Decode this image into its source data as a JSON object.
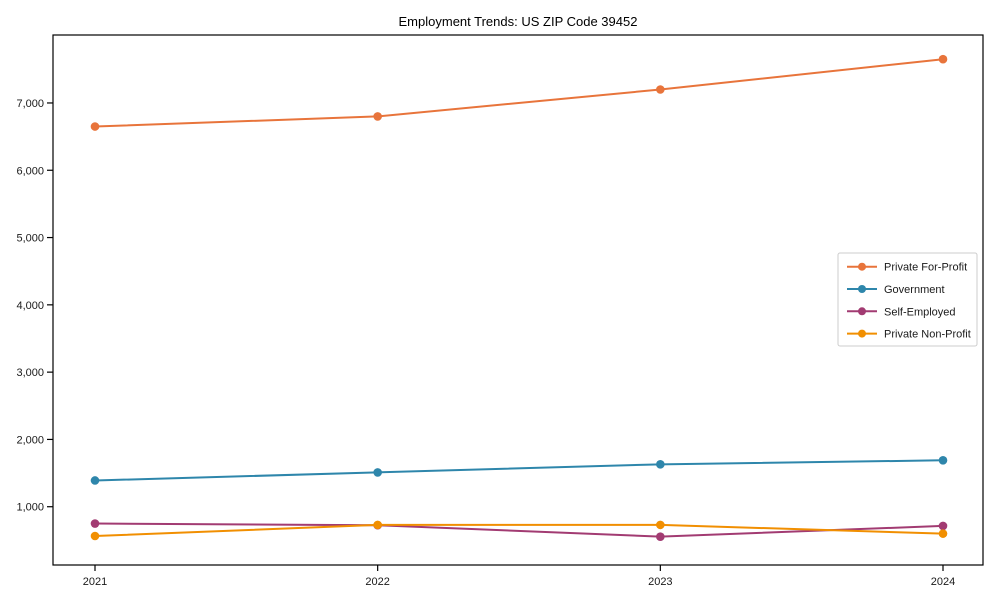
{
  "chart_data": {
    "type": "line",
    "title": "Employment Trends: US ZIP Code 39452",
    "x": [
      2021,
      2022,
      2023,
      2024
    ],
    "x_tick_labels": [
      "2021",
      "2022",
      "2023",
      "2024"
    ],
    "y_ticks": [
      1000,
      2000,
      3000,
      4000,
      5000,
      6000,
      7000
    ],
    "y_tick_labels": [
      "1,000",
      "2,000",
      "3,000",
      "4,000",
      "5,000",
      "6,000",
      "7,000"
    ],
    "ylim": [
      134,
      8010
    ],
    "grid": false,
    "legend_position": "center-right",
    "marker": "circle",
    "series": [
      {
        "name": "Private For-Profit",
        "color": "#E8743B",
        "values": [
          6650,
          6800,
          7200,
          7650
        ]
      },
      {
        "name": "Government",
        "color": "#2E86AB",
        "values": [
          1390,
          1510,
          1630,
          1690
        ]
      },
      {
        "name": "Self-Employed",
        "color": "#A23B72",
        "values": [
          750,
          725,
          555,
          715
        ]
      },
      {
        "name": "Private Non-Profit",
        "color": "#F18F01",
        "values": [
          565,
          730,
          730,
          600
        ]
      }
    ]
  }
}
